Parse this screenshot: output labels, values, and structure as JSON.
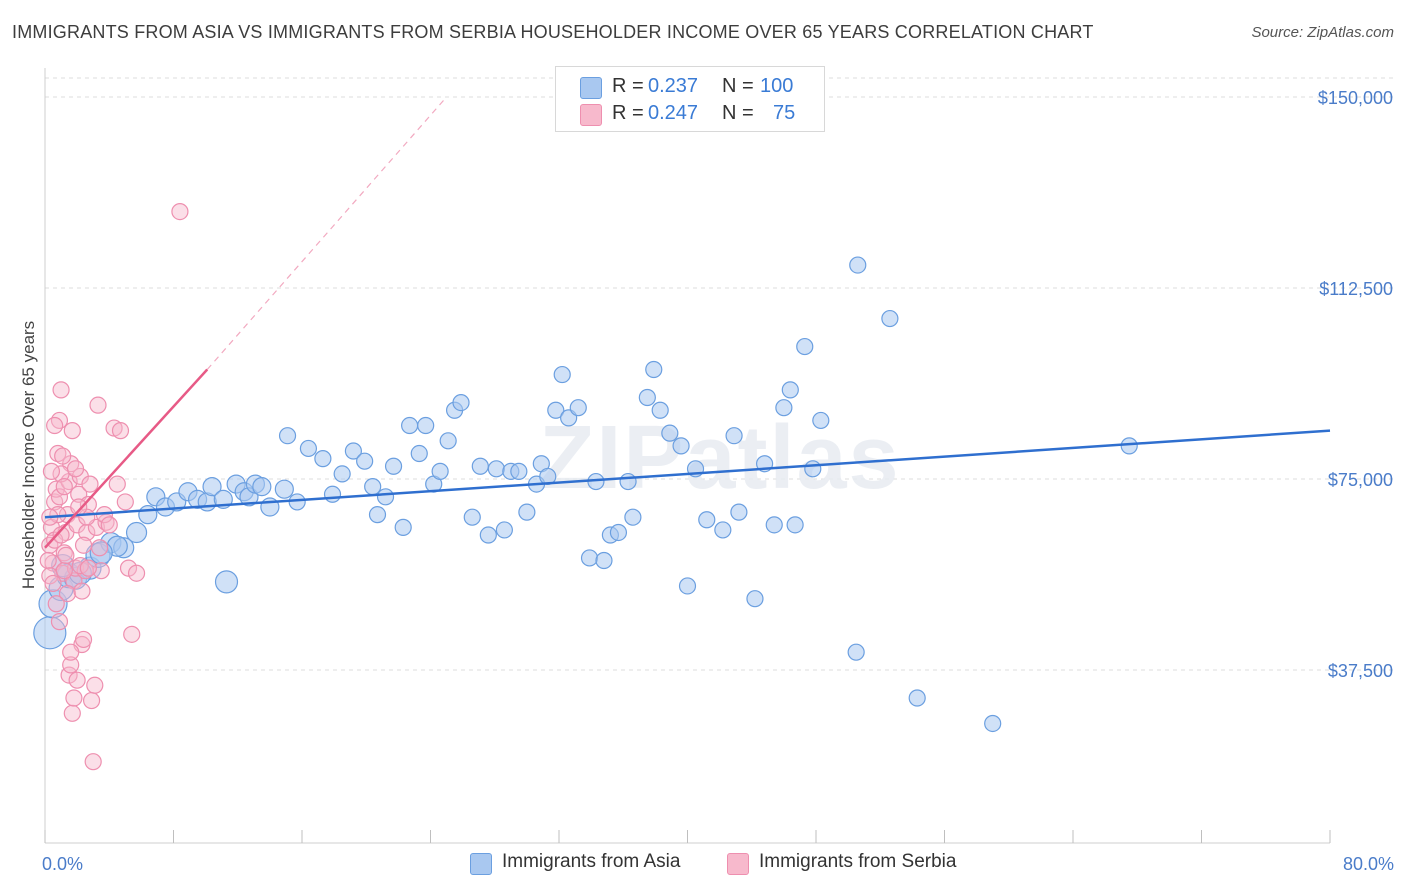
{
  "title": "IMMIGRANTS FROM ASIA VS IMMIGRANTS FROM SERBIA HOUSEHOLDER INCOME OVER 65 YEARS CORRELATION CHART",
  "source": "Source: ZipAtlas.com",
  "watermark": "ZIPatlas",
  "legend": {
    "rows": [
      {
        "r_label": "R =",
        "r_value": "0.237",
        "n_label": "N =",
        "n_value": "100",
        "color": "#a9c8f0"
      },
      {
        "r_label": "R =",
        "r_value": "0.247",
        "n_label": "N =",
        "n_value": "75",
        "color": "#f7b9cc"
      }
    ]
  },
  "bottom_legend": [
    {
      "label": "Immigrants from Asia",
      "color": "#a9c8f0"
    },
    {
      "label": "Immigrants from Serbia",
      "color": "#f7b9cc"
    }
  ],
  "chart_data": {
    "type": "scatter",
    "title": "IMMIGRANTS FROM ASIA VS IMMIGRANTS FROM SERBIA HOUSEHOLDER INCOME OVER 65 YEARS CORRELATION CHART",
    "xlabel": "",
    "ylabel": "Householder Income Over 65 years",
    "xlim": [
      0,
      80
    ],
    "ylim": [
      0,
      160000
    ],
    "x_tick_labels": [
      "0.0%",
      "80.0%"
    ],
    "y_ticks": [
      37500,
      75000,
      112500,
      150000
    ],
    "y_tick_labels": [
      "$37,500",
      "$75,000",
      "$112,500",
      "$150,000"
    ],
    "grid": true,
    "legend_position": "top-center",
    "series": [
      {
        "name": "Immigrants from Asia",
        "color": "#a9c8f0",
        "stroke": "#6b9fe0",
        "trend": {
          "x": [
            0,
            80
          ],
          "y": [
            67500,
            84500
          ],
          "color": "#2f6fcf"
        },
        "points": [
          [
            0.3,
            44800,
            16
          ],
          [
            0.5,
            50500,
            14
          ],
          [
            1.0,
            53500,
            12
          ],
          [
            1.5,
            56000,
            12
          ],
          [
            1.9,
            55500,
            11
          ],
          [
            2.8,
            57500,
            11
          ],
          [
            3.3,
            60000,
            12
          ],
          [
            4.1,
            62500,
            10
          ],
          [
            4.9,
            61500,
            10
          ],
          [
            5.7,
            64500,
            10
          ],
          [
            6.4,
            68000,
            9
          ],
          [
            6.9,
            71500,
            9
          ],
          [
            7.5,
            69500,
            9
          ],
          [
            8.2,
            70500,
            9
          ],
          [
            8.9,
            72500,
            9
          ],
          [
            9.5,
            71000,
            9
          ],
          [
            10.1,
            70500,
            9
          ],
          [
            10.4,
            73500,
            9
          ],
          [
            11.1,
            71000,
            9
          ],
          [
            11.3,
            54800,
            11
          ],
          [
            11.9,
            74000,
            9
          ],
          [
            12.4,
            72500,
            9
          ],
          [
            12.7,
            71500,
            9
          ],
          [
            13.1,
            74000,
            9
          ],
          [
            13.5,
            73500,
            9
          ],
          [
            14.0,
            69500,
            9
          ],
          [
            14.9,
            73000,
            9
          ],
          [
            15.1,
            83500,
            8
          ],
          [
            15.7,
            70500,
            8
          ],
          [
            16.4,
            81000,
            8
          ],
          [
            17.3,
            79000,
            8
          ],
          [
            17.9,
            72000,
            8
          ],
          [
            18.5,
            76000,
            8
          ],
          [
            19.2,
            80500,
            8
          ],
          [
            19.9,
            78500,
            8
          ],
          [
            20.4,
            73500,
            8
          ],
          [
            20.7,
            68000,
            8
          ],
          [
            21.2,
            71500,
            8
          ],
          [
            21.7,
            77500,
            8
          ],
          [
            22.3,
            65500,
            8
          ],
          [
            22.7,
            85500,
            8
          ],
          [
            23.3,
            80000,
            8
          ],
          [
            23.7,
            85500,
            8
          ],
          [
            24.2,
            74000,
            8
          ],
          [
            24.6,
            76500,
            8
          ],
          [
            25.1,
            82500,
            8
          ],
          [
            25.5,
            88500,
            8
          ],
          [
            25.9,
            90000,
            8
          ],
          [
            26.6,
            67500,
            8
          ],
          [
            27.1,
            77500,
            8
          ],
          [
            27.6,
            64000,
            8
          ],
          [
            28.1,
            77000,
            8
          ],
          [
            28.6,
            65000,
            8
          ],
          [
            29.0,
            76500,
            8
          ],
          [
            29.5,
            76500,
            8
          ],
          [
            30.0,
            68500,
            8
          ],
          [
            30.6,
            74000,
            8
          ],
          [
            30.9,
            78000,
            8
          ],
          [
            31.3,
            75500,
            8
          ],
          [
            31.8,
            88500,
            8
          ],
          [
            32.2,
            95500,
            8
          ],
          [
            32.6,
            87000,
            8
          ],
          [
            33.2,
            89000,
            8
          ],
          [
            33.9,
            59500,
            8
          ],
          [
            34.3,
            74500,
            8
          ],
          [
            34.8,
            59000,
            8
          ],
          [
            35.2,
            64000,
            8
          ],
          [
            35.7,
            64500,
            8
          ],
          [
            36.3,
            74500,
            8
          ],
          [
            36.6,
            67500,
            8
          ],
          [
            37.5,
            91000,
            8
          ],
          [
            37.9,
            96500,
            8
          ],
          [
            38.3,
            88500,
            8
          ],
          [
            38.9,
            84000,
            8
          ],
          [
            39.6,
            81500,
            8
          ],
          [
            40.0,
            54000,
            8
          ],
          [
            40.5,
            77000,
            8
          ],
          [
            41.2,
            67000,
            8
          ],
          [
            42.2,
            65000,
            8
          ],
          [
            42.9,
            83500,
            8
          ],
          [
            43.2,
            68500,
            8
          ],
          [
            44.2,
            51500,
            8
          ],
          [
            44.8,
            78000,
            8
          ],
          [
            45.4,
            66000,
            8
          ],
          [
            46.0,
            89000,
            8
          ],
          [
            46.4,
            92500,
            8
          ],
          [
            46.7,
            66000,
            8
          ],
          [
            47.3,
            101000,
            8
          ],
          [
            47.8,
            77000,
            8
          ],
          [
            48.3,
            86500,
            8
          ],
          [
            50.6,
            117000,
            8
          ],
          [
            50.5,
            41000,
            8
          ],
          [
            52.6,
            106500,
            8
          ],
          [
            54.3,
            32000,
            8
          ],
          [
            59.0,
            27000,
            8
          ],
          [
            67.5,
            81500,
            8
          ],
          [
            1.1,
            58000,
            11
          ],
          [
            2.2,
            56500,
            11
          ],
          [
            4.5,
            61800,
            10
          ],
          [
            3.5,
            60500,
            11
          ]
        ]
      },
      {
        "name": "Immigrants from Serbia",
        "color": "#f7b9cc",
        "stroke": "#ee8faf",
        "trend": {
          "x": [
            0,
            10.1
          ],
          "y": [
            61500,
            96500
          ],
          "color": "#e75a86",
          "dashed_extension": {
            "x": [
              10.1,
              25
            ],
            "y": [
              96500,
              150000
            ]
          }
        },
        "points": [
          [
            0.3,
            62000,
            8
          ],
          [
            0.4,
            65500,
            8
          ],
          [
            0.5,
            58500,
            8
          ],
          [
            0.6,
            70500,
            8
          ],
          [
            0.7,
            73000,
            8
          ],
          [
            0.8,
            80000,
            8
          ],
          [
            0.9,
            86500,
            8
          ],
          [
            1.0,
            92500,
            8
          ],
          [
            1.1,
            56500,
            8
          ],
          [
            1.2,
            60500,
            8
          ],
          [
            1.3,
            64500,
            8
          ],
          [
            1.4,
            68000,
            8
          ],
          [
            1.5,
            74500,
            8
          ],
          [
            1.6,
            78000,
            8
          ],
          [
            1.7,
            84500,
            8
          ],
          [
            1.8,
            55000,
            8
          ],
          [
            1.9,
            57500,
            8
          ],
          [
            2.0,
            66000,
            8
          ],
          [
            2.1,
            72000,
            8
          ],
          [
            2.2,
            75500,
            8
          ],
          [
            2.3,
            42500,
            8
          ],
          [
            2.4,
            43500,
            8
          ],
          [
            2.5,
            57000,
            8
          ],
          [
            2.6,
            64500,
            8
          ],
          [
            2.7,
            70000,
            8
          ],
          [
            2.8,
            74000,
            8
          ],
          [
            2.9,
            31500,
            8
          ],
          [
            3.0,
            19500,
            8
          ],
          [
            3.1,
            34500,
            8
          ],
          [
            3.2,
            65500,
            8
          ],
          [
            3.3,
            89500,
            8
          ],
          [
            3.5,
            57000,
            8
          ],
          [
            3.8,
            66500,
            8
          ],
          [
            4.3,
            85000,
            8
          ],
          [
            4.5,
            74000,
            8
          ],
          [
            4.7,
            84500,
            8
          ],
          [
            5.0,
            70500,
            8
          ],
          [
            5.2,
            57500,
            8
          ],
          [
            5.4,
            44500,
            8
          ],
          [
            5.7,
            56500,
            8
          ],
          [
            8.4,
            127500,
            8
          ],
          [
            0.2,
            59000,
            8
          ],
          [
            0.3,
            56000,
            8
          ],
          [
            0.5,
            54500,
            8
          ],
          [
            0.6,
            63000,
            8
          ],
          [
            0.8,
            68000,
            8
          ],
          [
            0.9,
            71500,
            8
          ],
          [
            1.0,
            76000,
            8
          ],
          [
            1.1,
            79500,
            8
          ],
          [
            1.2,
            57000,
            8
          ],
          [
            1.4,
            52500,
            8
          ],
          [
            1.5,
            36500,
            8
          ],
          [
            1.6,
            38500,
            8
          ],
          [
            1.7,
            29000,
            8
          ],
          [
            1.8,
            32000,
            8
          ],
          [
            2.0,
            35500,
            8
          ],
          [
            2.2,
            58000,
            8
          ],
          [
            2.4,
            62000,
            8
          ],
          [
            2.6,
            67500,
            8
          ],
          [
            0.4,
            76500,
            8
          ],
          [
            0.7,
            50500,
            8
          ],
          [
            1.3,
            60000,
            8
          ],
          [
            1.9,
            77000,
            8
          ],
          [
            2.1,
            69500,
            8
          ],
          [
            2.7,
            57500,
            8
          ],
          [
            3.4,
            61500,
            8
          ],
          [
            3.7,
            68000,
            8
          ],
          [
            4.0,
            66000,
            8
          ],
          [
            0.9,
            47000,
            8
          ],
          [
            1.6,
            41000,
            8
          ],
          [
            2.3,
            53000,
            8
          ],
          [
            0.6,
            85500,
            8
          ],
          [
            1.2,
            73500,
            8
          ],
          [
            0.3,
            67500,
            8
          ],
          [
            1.0,
            64000,
            8
          ]
        ]
      }
    ]
  }
}
